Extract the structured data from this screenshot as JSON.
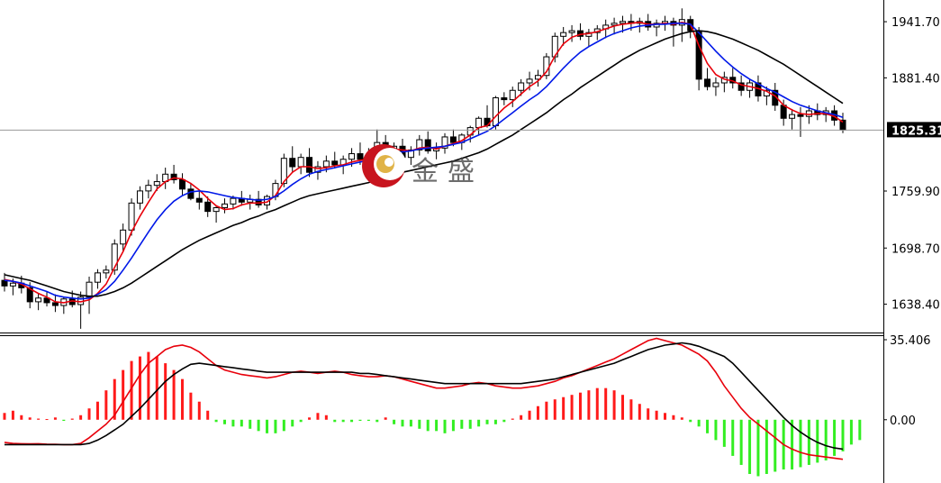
{
  "watermark": {
    "text": "金盛"
  },
  "colors": {
    "background": "#ffffff",
    "candle_up_fill": "#ffffff",
    "candle_down_fill": "#000000",
    "candle_outline": "#000000",
    "ma_fast": "#e8000b",
    "ma_mid": "#0018e8",
    "ma_slow": "#000000",
    "macd_hist_positive": "#ff1a1a",
    "macd_hist_negative": "#33ee22",
    "macd_line": "#e8000b",
    "signal_line": "#000000",
    "price_marker_bg": "#000000",
    "price_marker_text": "#ffffff",
    "logo_red": "#c8141e",
    "logo_gold": "#e0b347"
  },
  "chart_data": [
    {
      "type": "candlestick",
      "panel": "price",
      "y_ticks": [
        1941.7,
        1881.4,
        1759.9,
        1698.7,
        1638.4
      ],
      "y_tick_labels": [
        "1941.70",
        "1881.40",
        "1759.90",
        "1698.70",
        "1638.40"
      ],
      "ylim": [
        1608,
        1965
      ],
      "current_price": 1825.31,
      "current_price_label": "1825.31",
      "candles": [
        [
          1664,
          1672,
          1652,
          1658
        ],
        [
          1658,
          1666,
          1648,
          1661
        ],
        [
          1661,
          1669,
          1650,
          1656
        ],
        [
          1656,
          1662,
          1634,
          1641
        ],
        [
          1641,
          1650,
          1632,
          1645
        ],
        [
          1645,
          1652,
          1636,
          1640
        ],
        [
          1640,
          1649,
          1630,
          1637
        ],
        [
          1637,
          1646,
          1628,
          1644
        ],
        [
          1644,
          1653,
          1635,
          1638
        ],
        [
          1638,
          1652,
          1612,
          1646
        ],
        [
          1646,
          1668,
          1628,
          1662
        ],
        [
          1662,
          1676,
          1655,
          1672
        ],
        [
          1672,
          1680,
          1666,
          1675
        ],
        [
          1675,
          1708,
          1670,
          1703
        ],
        [
          1703,
          1725,
          1695,
          1718
        ],
        [
          1718,
          1752,
          1712,
          1747
        ],
        [
          1747,
          1765,
          1740,
          1760
        ],
        [
          1760,
          1772,
          1752,
          1766
        ],
        [
          1766,
          1778,
          1760,
          1770
        ],
        [
          1770,
          1785,
          1762,
          1778
        ],
        [
          1778,
          1788,
          1768,
          1772
        ],
        [
          1772,
          1779,
          1755,
          1762
        ],
        [
          1762,
          1768,
          1750,
          1752
        ],
        [
          1752,
          1760,
          1740,
          1748
        ],
        [
          1748,
          1754,
          1732,
          1738
        ],
        [
          1738,
          1744,
          1726,
          1742
        ],
        [
          1742,
          1752,
          1736,
          1746
        ],
        [
          1746,
          1755,
          1740,
          1752
        ],
        [
          1752,
          1760,
          1744,
          1748
        ],
        [
          1748,
          1756,
          1740,
          1751
        ],
        [
          1751,
          1760,
          1742,
          1745
        ],
        [
          1745,
          1756,
          1740,
          1754
        ],
        [
          1754,
          1772,
          1750,
          1768
        ],
        [
          1768,
          1800,
          1764,
          1795
        ],
        [
          1795,
          1808,
          1780,
          1786
        ],
        [
          1786,
          1800,
          1778,
          1796
        ],
        [
          1796,
          1806,
          1775,
          1780
        ],
        [
          1780,
          1792,
          1772,
          1786
        ],
        [
          1786,
          1798,
          1780,
          1792
        ],
        [
          1792,
          1802,
          1784,
          1788
        ],
        [
          1788,
          1798,
          1778,
          1794
        ],
        [
          1794,
          1806,
          1786,
          1800
        ],
        [
          1800,
          1812,
          1788,
          1794
        ],
        [
          1794,
          1806,
          1784,
          1798
        ],
        [
          1798,
          1826,
          1790,
          1812
        ],
        [
          1812,
          1820,
          1796,
          1802
        ],
        [
          1802,
          1812,
          1794,
          1808
        ],
        [
          1808,
          1816,
          1790,
          1796
        ],
        [
          1796,
          1808,
          1788,
          1804
        ],
        [
          1804,
          1820,
          1798,
          1815
        ],
        [
          1815,
          1824,
          1800,
          1803
        ],
        [
          1803,
          1812,
          1794,
          1806
        ],
        [
          1806,
          1822,
          1800,
          1818
        ],
        [
          1818,
          1826,
          1808,
          1812
        ],
        [
          1812,
          1822,
          1804,
          1820
        ],
        [
          1820,
          1830,
          1812,
          1828
        ],
        [
          1828,
          1840,
          1820,
          1838
        ],
        [
          1838,
          1852,
          1828,
          1830
        ],
        [
          1830,
          1862,
          1826,
          1860
        ],
        [
          1860,
          1866,
          1852,
          1858
        ],
        [
          1858,
          1872,
          1850,
          1868
        ],
        [
          1868,
          1880,
          1862,
          1876
        ],
        [
          1876,
          1888,
          1868,
          1880
        ],
        [
          1880,
          1890,
          1872,
          1884
        ],
        [
          1884,
          1908,
          1880,
          1904
        ],
        [
          1904,
          1930,
          1898,
          1926
        ],
        [
          1926,
          1936,
          1916,
          1930
        ],
        [
          1930,
          1938,
          1920,
          1932
        ],
        [
          1932,
          1940,
          1922,
          1926
        ],
        [
          1926,
          1934,
          1915,
          1930
        ],
        [
          1930,
          1938,
          1922,
          1934
        ],
        [
          1934,
          1944,
          1924,
          1938
        ],
        [
          1938,
          1946,
          1928,
          1940
        ],
        [
          1940,
          1948,
          1930,
          1942
        ],
        [
          1942,
          1950,
          1932,
          1940
        ],
        [
          1940,
          1946,
          1930,
          1942
        ],
        [
          1942,
          1950,
          1932,
          1936
        ],
        [
          1936,
          1944,
          1926,
          1940
        ],
        [
          1940,
          1948,
          1932,
          1942
        ],
        [
          1942,
          1946,
          1915,
          1938
        ],
        [
          1938,
          1956,
          1920,
          1944
        ],
        [
          1944,
          1948,
          1924,
          1932
        ],
        [
          1932,
          1936,
          1868,
          1880
        ],
        [
          1880,
          1892,
          1868,
          1872
        ],
        [
          1872,
          1882,
          1862,
          1876
        ],
        [
          1876,
          1888,
          1866,
          1882
        ],
        [
          1882,
          1892,
          1870,
          1876
        ],
        [
          1876,
          1884,
          1862,
          1868
        ],
        [
          1868,
          1880,
          1860,
          1876
        ],
        [
          1876,
          1884,
          1856,
          1862
        ],
        [
          1862,
          1872,
          1852,
          1868
        ],
        [
          1868,
          1876,
          1846,
          1852
        ],
        [
          1852,
          1858,
          1830,
          1838
        ],
        [
          1838,
          1848,
          1826,
          1842
        ],
        [
          1842,
          1850,
          1818,
          1840
        ],
        [
          1840,
          1852,
          1832,
          1846
        ],
        [
          1846,
          1854,
          1836,
          1842
        ],
        [
          1842,
          1850,
          1834,
          1846
        ],
        [
          1846,
          1852,
          1830,
          1836
        ],
        [
          1836,
          1844,
          1822,
          1825.31
        ]
      ]
    },
    {
      "type": "line",
      "panel": "price",
      "series": [
        {
          "values": [
            1665,
            1663,
            1660,
            1655,
            1650,
            1646,
            1641,
            1640,
            1642,
            1641,
            1643,
            1650,
            1660,
            1678,
            1695,
            1716,
            1733,
            1748,
            1762,
            1770,
            1774,
            1773,
            1768,
            1761,
            1752,
            1744,
            1740,
            1741,
            1745,
            1747,
            1747,
            1748,
            1755,
            1770,
            1780,
            1786,
            1786,
            1784,
            1785,
            1787,
            1788,
            1791,
            1793,
            1794,
            1800,
            1803,
            1805,
            1804,
            1803,
            1806,
            1807,
            1805,
            1808,
            1811,
            1814,
            1820,
            1828,
            1830,
            1840,
            1849,
            1856,
            1864,
            1872,
            1878,
            1888,
            1905,
            1918,
            1925,
            1928,
            1929,
            1931,
            1934,
            1937,
            1939,
            1940,
            1941,
            1939,
            1939,
            1940,
            1939,
            1941,
            1939,
            1916,
            1897,
            1885,
            1880,
            1878,
            1874,
            1872,
            1870,
            1867,
            1862,
            1852,
            1847,
            1843,
            1842,
            1843,
            1843,
            1840,
            1834
          ]
        },
        {
          "values": [
            1664,
            1663,
            1661,
            1658,
            1655,
            1652,
            1648,
            1646,
            1645,
            1644,
            1645,
            1649,
            1654,
            1663,
            1675,
            1688,
            1702,
            1716,
            1729,
            1740,
            1749,
            1755,
            1759,
            1760,
            1759,
            1757,
            1755,
            1753,
            1752,
            1751,
            1750,
            1751,
            1754,
            1760,
            1767,
            1773,
            1778,
            1781,
            1783,
            1785,
            1787,
            1789,
            1791,
            1793,
            1796,
            1799,
            1801,
            1802,
            1803,
            1805,
            1806,
            1807,
            1808,
            1810,
            1812,
            1816,
            1820,
            1824,
            1830,
            1837,
            1844,
            1851,
            1858,
            1864,
            1872,
            1882,
            1892,
            1901,
            1909,
            1915,
            1920,
            1925,
            1929,
            1932,
            1935,
            1937,
            1938,
            1939,
            1939,
            1940,
            1940,
            1939,
            1930,
            1920,
            1910,
            1901,
            1893,
            1886,
            1880,
            1875,
            1870,
            1866,
            1861,
            1856,
            1852,
            1849,
            1846,
            1844,
            1842,
            1839
          ]
        },
        {
          "values": [
            1670,
            1668,
            1666,
            1664,
            1661,
            1658,
            1655,
            1652,
            1650,
            1648,
            1647,
            1647,
            1649,
            1652,
            1656,
            1661,
            1667,
            1673,
            1679,
            1685,
            1691,
            1697,
            1702,
            1707,
            1711,
            1715,
            1719,
            1723,
            1726,
            1730,
            1733,
            1737,
            1740,
            1744,
            1748,
            1752,
            1755,
            1757,
            1759,
            1761,
            1763,
            1765,
            1767,
            1769,
            1772,
            1775,
            1778,
            1780,
            1782,
            1784,
            1786,
            1788,
            1790,
            1792,
            1795,
            1798,
            1801,
            1805,
            1810,
            1815,
            1820,
            1826,
            1832,
            1838,
            1844,
            1851,
            1858,
            1864,
            1871,
            1877,
            1883,
            1889,
            1895,
            1901,
            1906,
            1911,
            1915,
            1919,
            1923,
            1926,
            1929,
            1931,
            1932,
            1931,
            1929,
            1926,
            1923,
            1919,
            1915,
            1911,
            1906,
            1901,
            1896,
            1890,
            1884,
            1878,
            1872,
            1866,
            1860,
            1854
          ]
        }
      ]
    },
    {
      "type": "bar",
      "panel": "macd",
      "y_ticks": [
        35.406,
        0
      ],
      "y_tick_labels": [
        "35.406",
        "0.00"
      ],
      "ylim": [
        -28,
        37
      ],
      "histogram": [
        3,
        4,
        2,
        1,
        0.5,
        0.3,
        1,
        -0.5,
        0.5,
        2,
        5,
        8,
        13,
        18,
        22,
        26,
        28,
        30,
        28,
        25,
        22,
        18,
        12,
        8,
        4,
        -1,
        -2,
        -3,
        -3,
        -4,
        -5,
        -6,
        -6,
        -5,
        -3,
        -1,
        1,
        3,
        2,
        -1,
        -1,
        -1,
        -0.5,
        -0.5,
        -1,
        1,
        -2,
        -3,
        -3,
        -4,
        -5,
        -5,
        -6,
        -5,
        -4,
        -4,
        -3,
        -2,
        -2,
        -1,
        0.5,
        2,
        4,
        6,
        8,
        9,
        10,
        11,
        12,
        13,
        14,
        14,
        13,
        11,
        9,
        7,
        5,
        4,
        3,
        2,
        1,
        -1,
        -3,
        -6,
        -9,
        -12,
        -16,
        -20,
        -24,
        -25,
        -24,
        -23,
        -22,
        -22,
        -21,
        -20,
        -19,
        -18,
        -16,
        -14,
        -11,
        -9
      ],
      "series": [
        {
          "values": [
            -10,
            -10.5,
            -10.6,
            -10.7,
            -10.6,
            -10.8,
            -10.9,
            -11,
            -11,
            -10.5,
            -8,
            -5,
            -2,
            2,
            8,
            14,
            20,
            25,
            28,
            31,
            32.5,
            33,
            32,
            30,
            27,
            24,
            22,
            21,
            20,
            19.5,
            19,
            18.5,
            19,
            20,
            21,
            21.5,
            21,
            20.5,
            21,
            21.5,
            21,
            20,
            19.5,
            19,
            19,
            19.5,
            19,
            18,
            17,
            16,
            15,
            14,
            14,
            14.5,
            15,
            16,
            16.5,
            16,
            15,
            14.5,
            14,
            14,
            14.5,
            15,
            16,
            17,
            18.5,
            19.5,
            21,
            22.5,
            24,
            25.5,
            27,
            29,
            31,
            33,
            35,
            36,
            35,
            34,
            33,
            31,
            29,
            26,
            21,
            15,
            10,
            5,
            1,
            -2,
            -5,
            -8,
            -11,
            -13,
            -14.5,
            -15.5,
            -16,
            -16.5,
            -17,
            -17.5
          ]
        },
        {
          "values": [
            -11,
            -11,
            -11,
            -11,
            -11,
            -11,
            -11,
            -11,
            -11,
            -11,
            -10.5,
            -9,
            -7,
            -4.5,
            -2,
            1.5,
            5,
            9,
            13,
            17,
            20,
            22.5,
            24.5,
            25,
            24.5,
            24,
            23.5,
            23,
            22.5,
            22,
            21.5,
            21,
            21,
            21,
            21,
            21,
            21,
            21,
            21,
            21,
            21,
            21,
            20.5,
            20.5,
            20,
            19.5,
            19,
            18.5,
            18,
            17.5,
            17,
            16.5,
            16,
            16,
            16,
            16,
            16,
            16,
            16,
            16,
            16,
            16,
            16.5,
            17,
            17.5,
            18,
            19,
            20,
            21,
            22,
            23,
            24,
            25,
            26.5,
            28,
            29.5,
            31,
            32,
            33,
            33.5,
            34,
            33.5,
            32.5,
            31,
            29.5,
            28,
            25,
            21,
            17,
            13,
            9,
            5,
            1,
            -2.5,
            -5.5,
            -8,
            -10,
            -11.5,
            -12.5,
            -13
          ]
        }
      ]
    }
  ]
}
